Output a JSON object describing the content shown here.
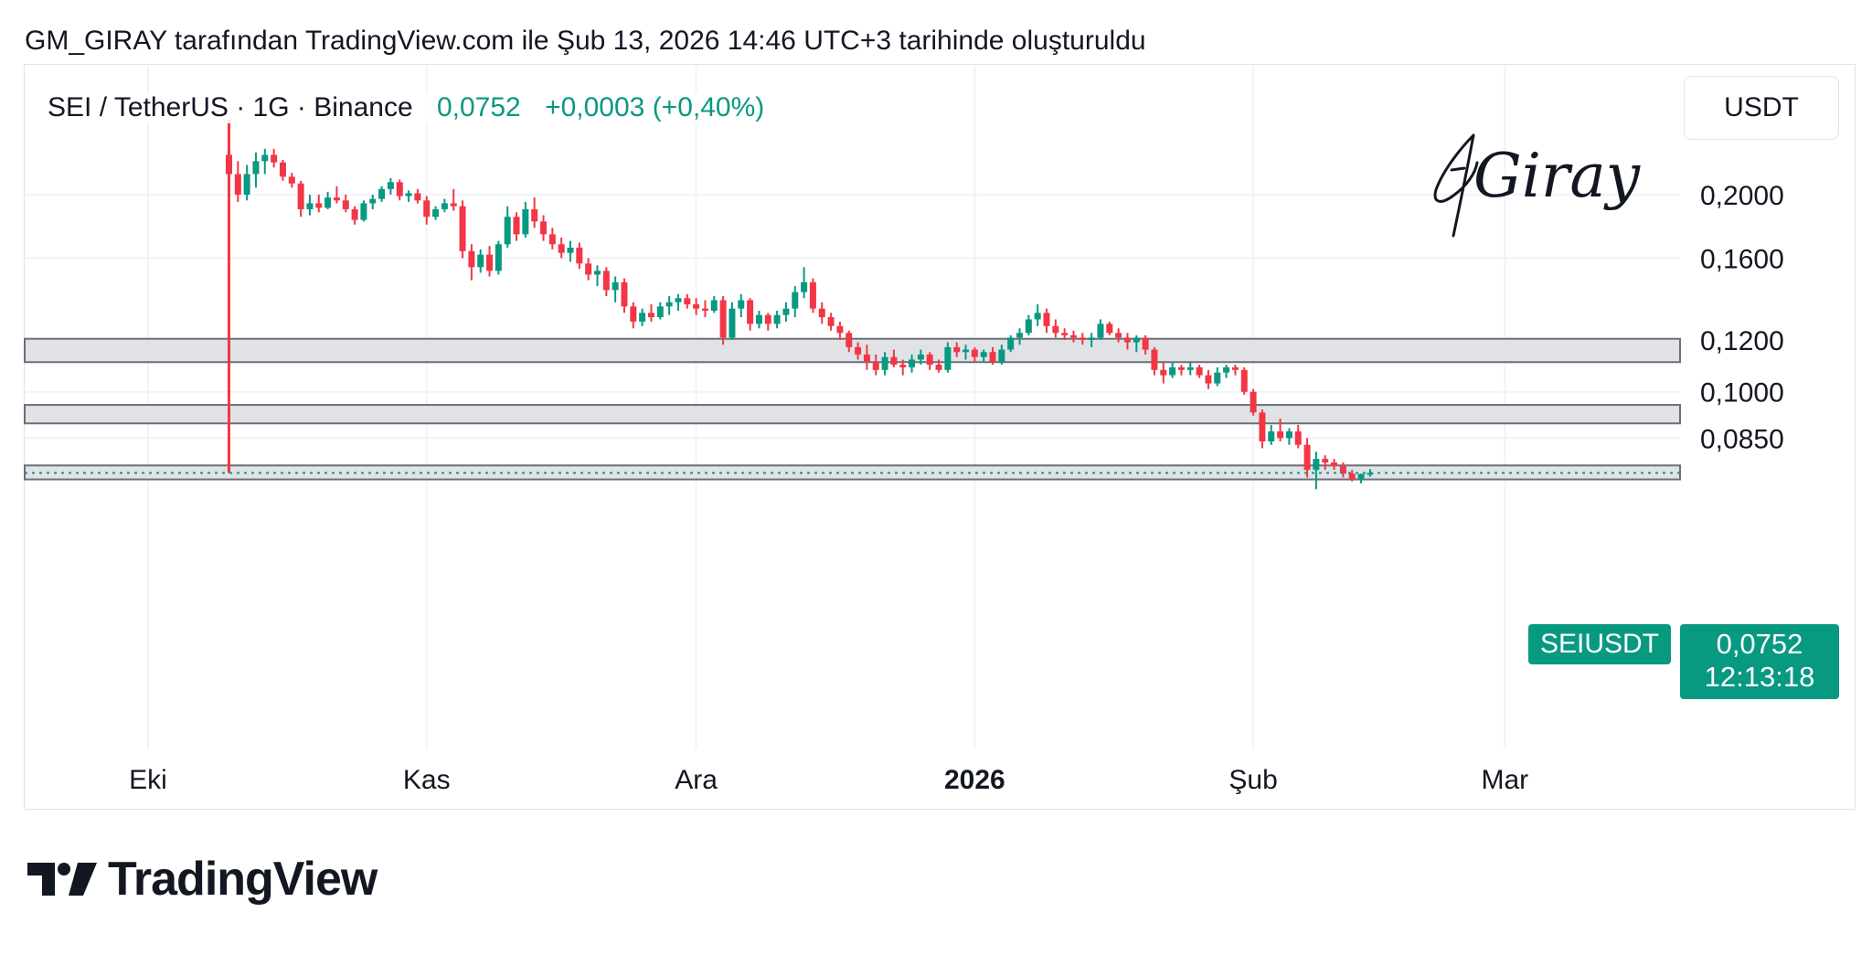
{
  "header": {
    "caption": "GM_GIRAY tarafından TradingView.com ile Şub 13, 2026 14:46 UTC+3 tarihinde oluşturuldu"
  },
  "legend": {
    "symbol": "SEI / TetherUS · 1G · Binance",
    "last": "0,0752",
    "change": "+0,0003 (+0,40%)"
  },
  "price_axis": {
    "unit": "USDT"
  },
  "watermark": {
    "signature": "Giray"
  },
  "tags": {
    "symbol": "SEIUSDT",
    "price": "0,0752",
    "countdown": "12:13:18"
  },
  "branding": {
    "logo_text": "TradingView"
  },
  "colors": {
    "up": "#089981",
    "down": "#f23645",
    "zone_fill": "#e1e2e6",
    "zone_border": "#6b6e76",
    "grid": "#f0f3fa"
  },
  "chart_data": {
    "type": "candlestick",
    "title": "SEI / TetherUS · 1G · Binance",
    "y_scale": "log",
    "ylim": [
      0.0635,
      0.26
    ],
    "y_ticks": [
      {
        "value": 0.2,
        "label": "0,2000"
      },
      {
        "value": 0.16,
        "label": "0,1600"
      },
      {
        "value": 0.12,
        "label": "0,1200"
      },
      {
        "value": 0.1,
        "label": "0,1000"
      },
      {
        "value": 0.085,
        "label": "0,0850"
      }
    ],
    "x_ticks": [
      {
        "date": "2025-10-01",
        "label": "Eki",
        "bold": false
      },
      {
        "date": "2025-11-01",
        "label": "Kas",
        "bold": false
      },
      {
        "date": "2025-12-01",
        "label": "Ara",
        "bold": false
      },
      {
        "date": "2026-01-01",
        "label": "2026",
        "bold": true
      },
      {
        "date": "2026-02-01",
        "label": "Şub",
        "bold": false
      },
      {
        "date": "2026-03-01",
        "label": "Mar",
        "bold": false
      }
    ],
    "x_range": [
      "2025-09-22",
      "2026-03-21"
    ],
    "zones": [
      {
        "low": 0.111,
        "high": 0.1205
      },
      {
        "low": 0.0895,
        "high": 0.0955
      },
      {
        "low": 0.0735,
        "high": 0.0772
      }
    ],
    "event_line": {
      "date": "2025-10-10",
      "from": 0.26,
      "to": 0.0752
    },
    "last_price": 0.0752,
    "start_date": "2025-10-10",
    "candles": [
      [
        0.23,
        0.26,
        0.0752,
        0.215
      ],
      [
        0.215,
        0.225,
        0.195,
        0.2
      ],
      [
        0.2,
        0.222,
        0.196,
        0.215
      ],
      [
        0.215,
        0.232,
        0.205,
        0.225
      ],
      [
        0.225,
        0.235,
        0.215,
        0.23
      ],
      [
        0.23,
        0.235,
        0.22,
        0.224
      ],
      [
        0.224,
        0.226,
        0.21,
        0.213
      ],
      [
        0.213,
        0.216,
        0.205,
        0.208
      ],
      [
        0.208,
        0.21,
        0.185,
        0.19
      ],
      [
        0.19,
        0.2,
        0.186,
        0.194
      ],
      [
        0.194,
        0.2,
        0.188,
        0.191
      ],
      [
        0.191,
        0.202,
        0.19,
        0.198
      ],
      [
        0.198,
        0.206,
        0.194,
        0.196
      ],
      [
        0.196,
        0.2,
        0.188,
        0.19
      ],
      [
        0.19,
        0.192,
        0.18,
        0.183
      ],
      [
        0.183,
        0.196,
        0.182,
        0.194
      ],
      [
        0.194,
        0.2,
        0.19,
        0.197
      ],
      [
        0.197,
        0.206,
        0.195,
        0.204
      ],
      [
        0.204,
        0.212,
        0.2,
        0.209
      ],
      [
        0.209,
        0.211,
        0.196,
        0.199
      ],
      [
        0.199,
        0.203,
        0.195,
        0.201
      ],
      [
        0.201,
        0.204,
        0.194,
        0.196
      ],
      [
        0.196,
        0.199,
        0.18,
        0.185
      ],
      [
        0.185,
        0.192,
        0.183,
        0.19
      ],
      [
        0.19,
        0.197,
        0.188,
        0.194
      ],
      [
        0.194,
        0.204,
        0.189,
        0.192
      ],
      [
        0.192,
        0.196,
        0.16,
        0.164
      ],
      [
        0.164,
        0.168,
        0.148,
        0.155
      ],
      [
        0.155,
        0.165,
        0.152,
        0.162
      ],
      [
        0.162,
        0.167,
        0.15,
        0.153
      ],
      [
        0.153,
        0.17,
        0.151,
        0.168
      ],
      [
        0.168,
        0.192,
        0.166,
        0.185
      ],
      [
        0.185,
        0.188,
        0.17,
        0.174
      ],
      [
        0.174,
        0.195,
        0.172,
        0.19
      ],
      [
        0.19,
        0.198,
        0.178,
        0.182
      ],
      [
        0.182,
        0.186,
        0.17,
        0.174
      ],
      [
        0.174,
        0.178,
        0.165,
        0.168
      ],
      [
        0.168,
        0.172,
        0.16,
        0.163
      ],
      [
        0.163,
        0.17,
        0.158,
        0.166
      ],
      [
        0.166,
        0.169,
        0.154,
        0.157
      ],
      [
        0.157,
        0.16,
        0.148,
        0.151
      ],
      [
        0.151,
        0.156,
        0.145,
        0.153
      ],
      [
        0.153,
        0.155,
        0.14,
        0.143
      ],
      [
        0.143,
        0.15,
        0.137,
        0.147
      ],
      [
        0.147,
        0.149,
        0.132,
        0.135
      ],
      [
        0.135,
        0.137,
        0.125,
        0.128
      ],
      [
        0.128,
        0.134,
        0.126,
        0.132
      ],
      [
        0.132,
        0.136,
        0.128,
        0.13
      ],
      [
        0.13,
        0.137,
        0.129,
        0.135
      ],
      [
        0.135,
        0.14,
        0.131,
        0.137
      ],
      [
        0.137,
        0.141,
        0.133,
        0.139
      ],
      [
        0.139,
        0.141,
        0.134,
        0.136
      ],
      [
        0.136,
        0.139,
        0.131,
        0.134
      ],
      [
        0.134,
        0.138,
        0.13,
        0.133
      ],
      [
        0.133,
        0.14,
        0.132,
        0.138
      ],
      [
        0.138,
        0.14,
        0.118,
        0.121
      ],
      [
        0.121,
        0.137,
        0.12,
        0.134
      ],
      [
        0.134,
        0.141,
        0.13,
        0.138
      ],
      [
        0.138,
        0.139,
        0.124,
        0.127
      ],
      [
        0.127,
        0.133,
        0.125,
        0.131
      ],
      [
        0.131,
        0.132,
        0.124,
        0.127
      ],
      [
        0.127,
        0.133,
        0.125,
        0.131
      ],
      [
        0.131,
        0.137,
        0.128,
        0.134
      ],
      [
        0.134,
        0.145,
        0.13,
        0.142
      ],
      [
        0.142,
        0.155,
        0.139,
        0.147
      ],
      [
        0.147,
        0.149,
        0.132,
        0.134
      ],
      [
        0.134,
        0.137,
        0.127,
        0.13
      ],
      [
        0.13,
        0.132,
        0.124,
        0.126
      ],
      [
        0.126,
        0.128,
        0.12,
        0.123
      ],
      [
        0.123,
        0.124,
        0.115,
        0.117
      ],
      [
        0.117,
        0.119,
        0.112,
        0.114
      ],
      [
        0.114,
        0.118,
        0.108,
        0.111
      ],
      [
        0.111,
        0.114,
        0.106,
        0.108
      ],
      [
        0.108,
        0.115,
        0.106,
        0.113
      ],
      [
        0.113,
        0.116,
        0.109,
        0.11
      ],
      [
        0.11,
        0.112,
        0.106,
        0.109
      ],
      [
        0.109,
        0.114,
        0.107,
        0.112
      ],
      [
        0.112,
        0.116,
        0.11,
        0.114
      ],
      [
        0.114,
        0.115,
        0.108,
        0.11
      ],
      [
        0.11,
        0.112,
        0.107,
        0.108
      ],
      [
        0.108,
        0.119,
        0.107,
        0.117
      ],
      [
        0.117,
        0.119,
        0.113,
        0.115
      ],
      [
        0.115,
        0.118,
        0.112,
        0.116
      ],
      [
        0.116,
        0.117,
        0.111,
        0.113
      ],
      [
        0.113,
        0.116,
        0.111,
        0.115
      ],
      [
        0.115,
        0.117,
        0.11,
        0.111
      ],
      [
        0.111,
        0.118,
        0.11,
        0.116
      ],
      [
        0.116,
        0.122,
        0.115,
        0.121
      ],
      [
        0.121,
        0.125,
        0.118,
        0.123
      ],
      [
        0.123,
        0.131,
        0.122,
        0.129
      ],
      [
        0.129,
        0.136,
        0.126,
        0.132
      ],
      [
        0.132,
        0.134,
        0.123,
        0.126
      ],
      [
        0.126,
        0.129,
        0.121,
        0.123
      ],
      [
        0.123,
        0.125,
        0.12,
        0.122
      ],
      [
        0.122,
        0.124,
        0.119,
        0.121
      ],
      [
        0.121,
        0.123,
        0.118,
        0.12
      ],
      [
        0.12,
        0.123,
        0.117,
        0.121
      ],
      [
        0.121,
        0.129,
        0.12,
        0.127
      ],
      [
        0.127,
        0.128,
        0.122,
        0.123
      ],
      [
        0.123,
        0.125,
        0.119,
        0.121
      ],
      [
        0.121,
        0.123,
        0.116,
        0.119
      ],
      [
        0.119,
        0.122,
        0.115,
        0.121
      ],
      [
        0.121,
        0.122,
        0.114,
        0.116
      ],
      [
        0.116,
        0.117,
        0.106,
        0.108
      ],
      [
        0.108,
        0.111,
        0.103,
        0.106
      ],
      [
        0.106,
        0.111,
        0.105,
        0.109
      ],
      [
        0.109,
        0.11,
        0.106,
        0.108
      ],
      [
        0.108,
        0.111,
        0.106,
        0.109
      ],
      [
        0.109,
        0.11,
        0.105,
        0.106
      ],
      [
        0.106,
        0.108,
        0.101,
        0.103
      ],
      [
        0.103,
        0.109,
        0.102,
        0.107
      ],
      [
        0.107,
        0.11,
        0.105,
        0.109
      ],
      [
        0.109,
        0.11,
        0.106,
        0.108
      ],
      [
        0.108,
        0.109,
        0.099,
        0.1
      ],
      [
        0.1,
        0.101,
        0.092,
        0.093
      ],
      [
        0.093,
        0.094,
        0.082,
        0.084
      ],
      [
        0.084,
        0.089,
        0.083,
        0.087
      ],
      [
        0.087,
        0.091,
        0.084,
        0.085
      ],
      [
        0.085,
        0.088,
        0.083,
        0.087
      ],
      [
        0.087,
        0.089,
        0.082,
        0.083
      ],
      [
        0.083,
        0.085,
        0.074,
        0.076
      ],
      [
        0.076,
        0.081,
        0.071,
        0.079
      ],
      [
        0.079,
        0.08,
        0.076,
        0.078
      ],
      [
        0.078,
        0.079,
        0.076,
        0.077
      ],
      [
        0.077,
        0.078,
        0.074,
        0.075
      ],
      [
        0.075,
        0.076,
        0.073,
        0.0735
      ],
      [
        0.0735,
        0.075,
        0.0725,
        0.0749
      ],
      [
        0.0749,
        0.0762,
        0.0742,
        0.0752
      ]
    ]
  }
}
